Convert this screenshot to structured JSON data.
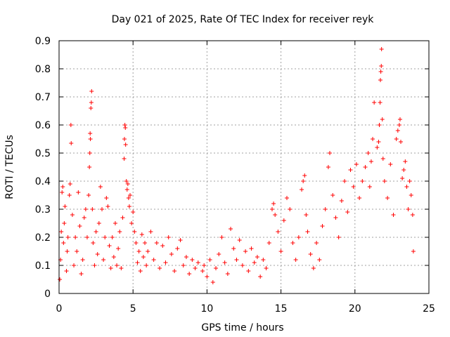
{
  "chart_data": {
    "type": "scatter",
    "title": "Day 021 of 2025, Rate Of TEC Index for receiver reyk",
    "xlabel": "GPS time / hours",
    "ylabel": "ROTI / TECUs",
    "xlim": [
      0,
      25
    ],
    "ylim": [
      0,
      0.9
    ],
    "x_ticks": [
      "0",
      "5",
      "10",
      "15",
      "20",
      "25"
    ],
    "y_ticks": [
      "0",
      "0.1",
      "0.2",
      "0.3",
      "0.4",
      "0.5",
      "0.6",
      "0.7",
      "0.8",
      "0.9"
    ],
    "grid": true,
    "marker": "+",
    "color": "#ff0000",
    "data_gap_hours": [
      9.45,
      9.6
    ],
    "series": [
      {
        "points": [
          [
            0.05,
            0.05
          ],
          [
            0.1,
            0.12
          ],
          [
            0.15,
            0.22
          ],
          [
            0.2,
            0.36
          ],
          [
            0.25,
            0.38
          ],
          [
            0.3,
            0.18
          ],
          [
            0.35,
            0.25
          ],
          [
            0.4,
            0.31
          ],
          [
            0.5,
            0.08
          ],
          [
            0.55,
            0.15
          ],
          [
            0.6,
            0.2
          ],
          [
            0.7,
            0.35
          ],
          [
            0.75,
            0.39
          ],
          [
            0.8,
            0.6
          ],
          [
            0.82,
            0.535
          ],
          [
            0.9,
            0.28
          ],
          [
            1.0,
            0.1
          ],
          [
            1.1,
            0.2
          ],
          [
            1.2,
            0.15
          ],
          [
            1.3,
            0.36
          ],
          [
            1.4,
            0.24
          ],
          [
            1.5,
            0.07
          ],
          [
            1.6,
            0.12
          ],
          [
            1.7,
            0.27
          ],
          [
            1.8,
            0.3
          ],
          [
            1.9,
            0.2
          ],
          [
            2.0,
            0.35
          ],
          [
            2.05,
            0.45
          ],
          [
            2.08,
            0.5
          ],
          [
            2.1,
            0.57
          ],
          [
            2.12,
            0.55
          ],
          [
            2.15,
            0.66
          ],
          [
            2.18,
            0.68
          ],
          [
            2.2,
            0.72
          ],
          [
            2.25,
            0.3
          ],
          [
            2.3,
            0.18
          ],
          [
            2.4,
            0.1
          ],
          [
            2.5,
            0.22
          ],
          [
            2.6,
            0.14
          ],
          [
            2.7,
            0.25
          ],
          [
            2.8,
            0.38
          ],
          [
            2.9,
            0.3
          ],
          [
            3.0,
            0.12
          ],
          [
            3.1,
            0.2
          ],
          [
            3.2,
            0.34
          ],
          [
            3.3,
            0.31
          ],
          [
            3.4,
            0.17
          ],
          [
            3.5,
            0.09
          ],
          [
            3.6,
            0.2
          ],
          [
            3.7,
            0.13
          ],
          [
            3.8,
            0.25
          ],
          [
            3.9,
            0.1
          ],
          [
            4.0,
            0.16
          ],
          [
            4.1,
            0.22
          ],
          [
            4.2,
            0.09
          ],
          [
            4.3,
            0.27
          ],
          [
            4.4,
            0.48
          ],
          [
            4.42,
            0.55
          ],
          [
            4.45,
            0.6
          ],
          [
            4.48,
            0.59
          ],
          [
            4.5,
            0.53
          ],
          [
            4.55,
            0.4
          ],
          [
            4.6,
            0.37
          ],
          [
            4.65,
            0.39
          ],
          [
            4.7,
            0.34
          ],
          [
            4.75,
            0.31
          ],
          [
            4.8,
            0.35
          ],
          [
            4.9,
            0.25
          ],
          [
            5.0,
            0.29
          ],
          [
            5.1,
            0.22
          ],
          [
            5.2,
            0.18
          ],
          [
            5.3,
            0.11
          ],
          [
            5.4,
            0.15
          ],
          [
            5.5,
            0.08
          ],
          [
            5.6,
            0.21
          ],
          [
            5.7,
            0.13
          ],
          [
            5.8,
            0.18
          ],
          [
            5.9,
            0.1
          ],
          [
            6.0,
            0.15
          ],
          [
            6.2,
            0.22
          ],
          [
            6.4,
            0.12
          ],
          [
            6.6,
            0.18
          ],
          [
            6.8,
            0.09
          ],
          [
            7.0,
            0.17
          ],
          [
            7.2,
            0.11
          ],
          [
            7.4,
            0.2
          ],
          [
            7.6,
            0.14
          ],
          [
            7.8,
            0.08
          ],
          [
            8.0,
            0.16
          ],
          [
            8.2,
            0.19
          ],
          [
            8.4,
            0.1
          ],
          [
            8.6,
            0.13
          ],
          [
            8.8,
            0.07
          ],
          [
            9.0,
            0.12
          ],
          [
            9.2,
            0.09
          ],
          [
            9.4,
            0.11
          ],
          [
            9.7,
            0.08
          ],
          [
            9.8,
            0.1
          ],
          [
            10.0,
            0.06
          ],
          [
            10.2,
            0.12
          ],
          [
            10.4,
            0.04
          ],
          [
            10.6,
            0.09
          ],
          [
            10.8,
            0.14
          ],
          [
            11.0,
            0.2
          ],
          [
            11.2,
            0.11
          ],
          [
            11.4,
            0.07
          ],
          [
            11.6,
            0.23
          ],
          [
            11.8,
            0.16
          ],
          [
            12.0,
            0.12
          ],
          [
            12.2,
            0.19
          ],
          [
            12.4,
            0.1
          ],
          [
            12.6,
            0.15
          ],
          [
            12.8,
            0.08
          ],
          [
            13.0,
            0.16
          ],
          [
            13.2,
            0.11
          ],
          [
            13.4,
            0.13
          ],
          [
            13.6,
            0.06
          ],
          [
            13.8,
            0.12
          ],
          [
            14.0,
            0.09
          ],
          [
            14.2,
            0.18
          ],
          [
            14.4,
            0.3
          ],
          [
            14.5,
            0.32
          ],
          [
            14.6,
            0.28
          ],
          [
            14.8,
            0.22
          ],
          [
            15.0,
            0.15
          ],
          [
            15.2,
            0.26
          ],
          [
            15.4,
            0.34
          ],
          [
            15.6,
            0.3
          ],
          [
            15.8,
            0.18
          ],
          [
            16.0,
            0.12
          ],
          [
            16.2,
            0.2
          ],
          [
            16.4,
            0.37
          ],
          [
            16.5,
            0.4
          ],
          [
            16.6,
            0.42
          ],
          [
            16.7,
            0.28
          ],
          [
            16.8,
            0.22
          ],
          [
            17.0,
            0.14
          ],
          [
            17.2,
            0.09
          ],
          [
            17.4,
            0.18
          ],
          [
            17.6,
            0.12
          ],
          [
            17.8,
            0.24
          ],
          [
            18.0,
            0.3
          ],
          [
            18.2,
            0.45
          ],
          [
            18.3,
            0.5
          ],
          [
            18.5,
            0.35
          ],
          [
            18.7,
            0.27
          ],
          [
            18.9,
            0.2
          ],
          [
            19.1,
            0.33
          ],
          [
            19.3,
            0.4
          ],
          [
            19.5,
            0.29
          ],
          [
            19.7,
            0.44
          ],
          [
            19.9,
            0.38
          ],
          [
            20.1,
            0.46
          ],
          [
            20.3,
            0.34
          ],
          [
            20.5,
            0.4
          ],
          [
            20.7,
            0.45
          ],
          [
            20.9,
            0.5
          ],
          [
            21.0,
            0.38
          ],
          [
            21.1,
            0.47
          ],
          [
            21.2,
            0.55
          ],
          [
            21.3,
            0.68
          ],
          [
            21.5,
            0.52
          ],
          [
            21.6,
            0.54
          ],
          [
            21.65,
            0.6
          ],
          [
            21.7,
            0.68
          ],
          [
            21.72,
            0.76
          ],
          [
            21.75,
            0.79
          ],
          [
            21.78,
            0.81
          ],
          [
            21.8,
            0.87
          ],
          [
            21.85,
            0.62
          ],
          [
            21.9,
            0.48
          ],
          [
            22.0,
            0.4
          ],
          [
            22.2,
            0.34
          ],
          [
            22.4,
            0.46
          ],
          [
            22.6,
            0.28
          ],
          [
            22.8,
            0.55
          ],
          [
            22.9,
            0.58
          ],
          [
            23.0,
            0.6
          ],
          [
            23.05,
            0.62
          ],
          [
            23.1,
            0.54
          ],
          [
            23.2,
            0.41
          ],
          [
            23.3,
            0.44
          ],
          [
            23.4,
            0.47
          ],
          [
            23.5,
            0.38
          ],
          [
            23.6,
            0.3
          ],
          [
            23.7,
            0.4
          ],
          [
            23.8,
            0.35
          ],
          [
            23.9,
            0.28
          ],
          [
            23.95,
            0.15
          ]
        ]
      }
    ]
  }
}
